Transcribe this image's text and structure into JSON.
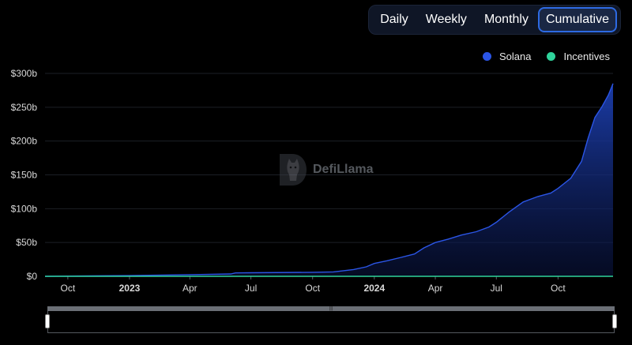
{
  "toggle": {
    "options": [
      "Daily",
      "Weekly",
      "Monthly",
      "Cumulative"
    ],
    "active": "Cumulative"
  },
  "legend": {
    "items": [
      {
        "label": "Solana",
        "color": "#2b55e6"
      },
      {
        "label": "Incentives",
        "color": "#2fd39b"
      }
    ]
  },
  "watermark": {
    "text": "DefiLlama"
  },
  "chart_data": {
    "type": "area",
    "title": "",
    "xlabel": "",
    "ylabel": "",
    "grid": true,
    "legend_position": "top-right",
    "ylim": [
      0,
      300
    ],
    "y_unit": "b",
    "y_ticks": [
      {
        "value": 0,
        "label": "$0"
      },
      {
        "value": 50,
        "label": "$50b"
      },
      {
        "value": 100,
        "label": "$100b"
      },
      {
        "value": 150,
        "label": "$150b"
      },
      {
        "value": 200,
        "label": "$200b"
      },
      {
        "value": 250,
        "label": "$250b"
      },
      {
        "value": 300,
        "label": "$300b"
      }
    ],
    "xlim": [
      "2022-08-28",
      "2024-12-22"
    ],
    "x_ticks": [
      {
        "date": "2022-10-01",
        "label": "Oct",
        "bold": false
      },
      {
        "date": "2023-01-01",
        "label": "2023",
        "bold": true
      },
      {
        "date": "2023-04-01",
        "label": "Apr",
        "bold": false
      },
      {
        "date": "2023-07-01",
        "label": "Jul",
        "bold": false
      },
      {
        "date": "2023-10-01",
        "label": "Oct",
        "bold": false
      },
      {
        "date": "2024-01-01",
        "label": "2024",
        "bold": true
      },
      {
        "date": "2024-04-01",
        "label": "Apr",
        "bold": false
      },
      {
        "date": "2024-07-01",
        "label": "Jul",
        "bold": false
      },
      {
        "date": "2024-10-01",
        "label": "Oct",
        "bold": false
      }
    ],
    "series": [
      {
        "name": "Solana",
        "color": "#2b55e6",
        "points": [
          [
            "2022-08-28",
            0
          ],
          [
            "2022-10-01",
            0.3
          ],
          [
            "2023-01-01",
            1.0
          ],
          [
            "2023-04-01",
            2.5
          ],
          [
            "2023-06-01",
            3.5
          ],
          [
            "2023-06-08",
            5.0
          ],
          [
            "2023-07-01",
            5.2
          ],
          [
            "2023-10-01",
            6.0
          ],
          [
            "2023-11-01",
            6.5
          ],
          [
            "2023-12-01",
            10
          ],
          [
            "2023-12-20",
            14
          ],
          [
            "2024-01-01",
            19
          ],
          [
            "2024-01-20",
            23
          ],
          [
            "2024-02-10",
            28
          ],
          [
            "2024-03-01",
            33
          ],
          [
            "2024-03-15",
            42
          ],
          [
            "2024-04-01",
            50
          ],
          [
            "2024-04-20",
            55
          ],
          [
            "2024-05-10",
            61
          ],
          [
            "2024-06-01",
            66
          ],
          [
            "2024-06-20",
            73
          ],
          [
            "2024-07-01",
            80
          ],
          [
            "2024-07-20",
            95
          ],
          [
            "2024-08-10",
            110
          ],
          [
            "2024-09-01",
            118
          ],
          [
            "2024-09-20",
            123
          ],
          [
            "2024-10-01",
            130
          ],
          [
            "2024-10-20",
            145
          ],
          [
            "2024-11-05",
            170
          ],
          [
            "2024-11-15",
            205
          ],
          [
            "2024-11-25",
            235
          ],
          [
            "2024-12-05",
            250
          ],
          [
            "2024-12-15",
            268
          ],
          [
            "2024-12-22",
            285
          ]
        ]
      },
      {
        "name": "Incentives",
        "color": "#2fd39b",
        "points": [
          [
            "2022-08-28",
            0
          ],
          [
            "2024-12-22",
            0
          ]
        ]
      }
    ]
  }
}
